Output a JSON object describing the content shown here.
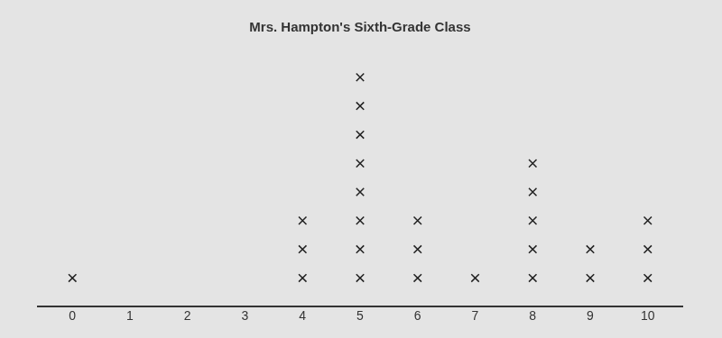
{
  "chart_data": {
    "type": "dot",
    "title": "Mrs. Hampton's Sixth-Grade Class",
    "x": [
      0,
      1,
      2,
      3,
      4,
      5,
      6,
      7,
      8,
      9,
      10
    ],
    "values": [
      1,
      0,
      0,
      0,
      3,
      8,
      3,
      1,
      5,
      2,
      3
    ],
    "xlim": [
      -0.6,
      10.6
    ],
    "xticks": [
      0,
      1,
      2,
      3,
      4,
      5,
      6,
      7,
      8,
      9,
      10
    ],
    "ylim": [
      0,
      9
    ],
    "marker": "x",
    "color": "#222222",
    "grid": false,
    "tick_labels": "x"
  }
}
